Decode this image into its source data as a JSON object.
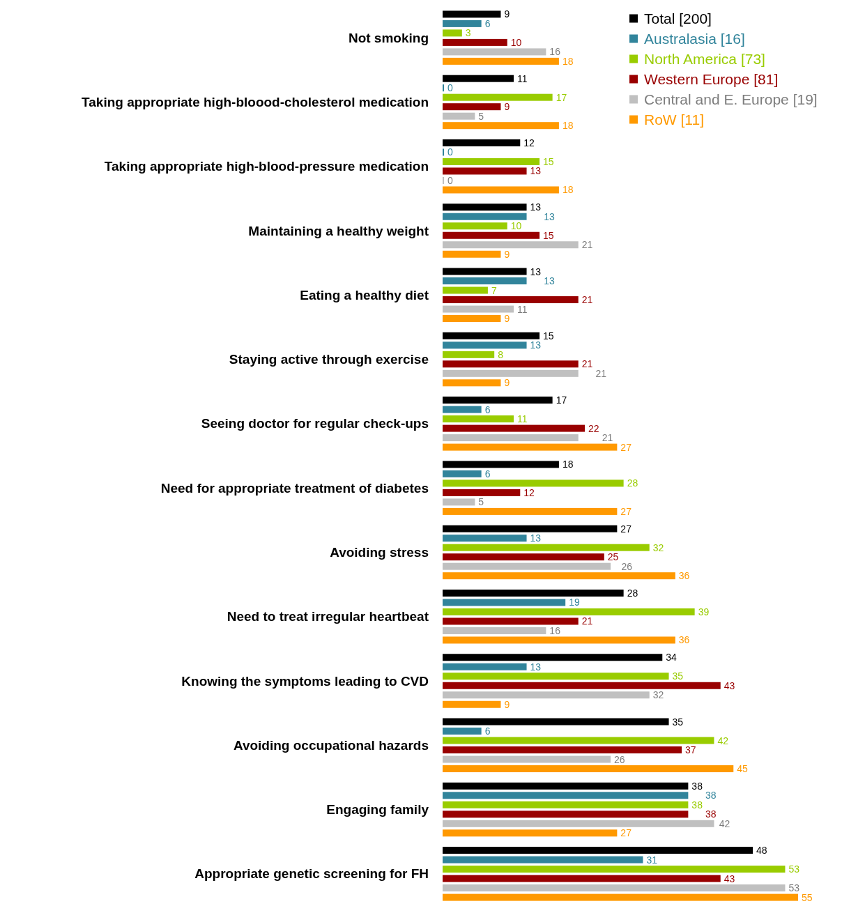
{
  "chart_data": {
    "type": "bar",
    "orientation": "horizontal",
    "data_labels": true,
    "legend": "top right",
    "categories": [
      "Not smoking",
      "Taking appropriate high-bloood-cholesterol medication",
      "Taking appropriate high-blood-pressure medication",
      "Maintaining a healthy weight",
      "Eating a healthy diet",
      "Staying active through exercise",
      "Seeing doctor for regular check-ups",
      "Need for appropriate treatment of diabetes",
      "Avoiding stress",
      "Need to treat irregular heartbeat",
      "Knowing the symptoms leading to CVD",
      "Avoiding occupational hazards",
      "Engaging family",
      "Appropriate genetic screening for FH"
    ],
    "series": [
      {
        "name": "Total [200]",
        "color": "#000000",
        "values": [
          9,
          11,
          12,
          13,
          13,
          15,
          17,
          18,
          27,
          28,
          34,
          35,
          38,
          48
        ]
      },
      {
        "name": "Australasia [16]",
        "color": "#31849b",
        "values": [
          6,
          0,
          0,
          13,
          13,
          13,
          6,
          6,
          13,
          19,
          13,
          6,
          38,
          31
        ]
      },
      {
        "name": "North America [73]",
        "color": "#99cc00",
        "values": [
          3,
          17,
          15,
          10,
          7,
          8,
          11,
          28,
          32,
          39,
          35,
          42,
          38,
          53
        ]
      },
      {
        "name": "Western Europe [81]",
        "color": "#990000",
        "values": [
          10,
          9,
          13,
          15,
          21,
          21,
          22,
          12,
          25,
          21,
          43,
          37,
          38,
          43
        ]
      },
      {
        "name": "Central and E. Europe [19]",
        "color": "#c0c0c0",
        "values": [
          16,
          5,
          0,
          21,
          11,
          21,
          21,
          5,
          26,
          16,
          32,
          26,
          42,
          53
        ]
      },
      {
        "name": "RoW [11]",
        "color": "#ff9900",
        "values": [
          18,
          18,
          18,
          9,
          9,
          9,
          27,
          27,
          36,
          36,
          9,
          45,
          27,
          55
        ]
      }
    ]
  }
}
